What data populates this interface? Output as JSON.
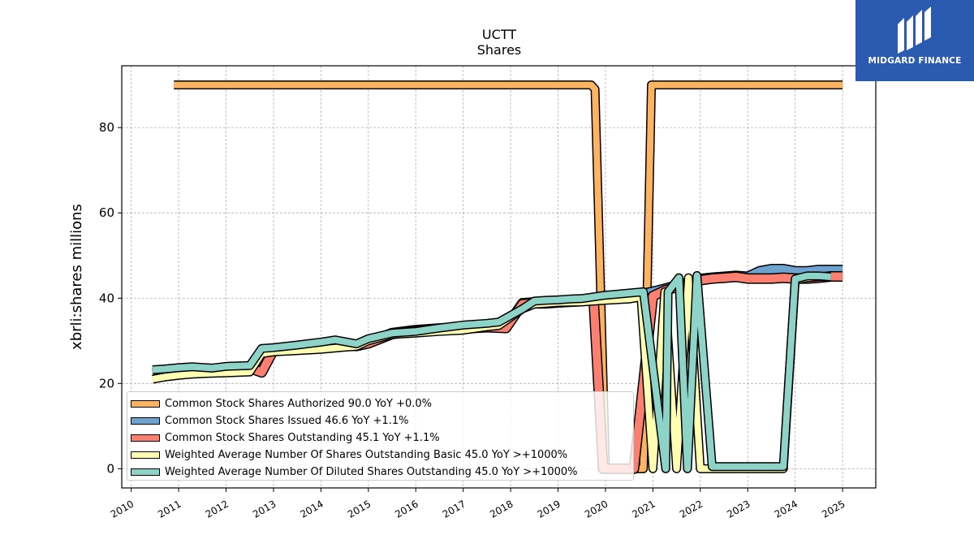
{
  "chart_data": {
    "type": "line",
    "title": "UCTT",
    "subtitle": "Shares",
    "ylabel": "xbrli:shares millions",
    "xlabel": "",
    "xlim": [
      2009.8,
      2025.7
    ],
    "ylim": [
      -4.5,
      94.5
    ],
    "yticks": [
      0,
      20,
      40,
      60,
      80
    ],
    "xticks": [
      "2010",
      "2011",
      "2012",
      "2013",
      "2014",
      "2015",
      "2016",
      "2017",
      "2018",
      "2019",
      "2020",
      "2021",
      "2022",
      "2023",
      "2024",
      "2025"
    ],
    "grid": true,
    "legend_position": "lower-left",
    "series": [
      {
        "name": "Common Stock Shares Authorized  90.0 YoY +0.0%",
        "color": "#fdb462",
        "x": [
          2010.9,
          2019.7,
          2019.78,
          2020.0,
          2020.6,
          2020.8,
          2020.97,
          2025.0
        ],
        "y": [
          90.0,
          90.0,
          89.0,
          0.0,
          0.0,
          0.0,
          90.0,
          90.0
        ]
      },
      {
        "name": "Common Stock Shares Issued  46.6 YoY +1.1%",
        "color": "#6fa3cf",
        "x": [
          2010.45,
          2010.7,
          2011.0,
          2011.3,
          2011.7,
          2012.0,
          2012.5,
          2012.75,
          2013.0,
          2013.5,
          2014.0,
          2014.5,
          2014.75,
          2015.0,
          2015.5,
          2016.0,
          2016.5,
          2017.0,
          2017.5,
          2017.9,
          2018.25,
          2018.5,
          2018.75,
          2019.0,
          2019.5,
          2019.75,
          2020.0,
          2020.5,
          2020.75,
          2021.0,
          2021.25,
          2021.5,
          2021.75,
          2022.0,
          2022.25,
          2022.5,
          2022.75,
          2023.0,
          2023.25,
          2023.5,
          2023.75,
          2024.0,
          2024.25,
          2024.5,
          2024.75,
          2025.0
        ],
        "y": [
          22.5,
          22.7,
          22.9,
          23.2,
          23.4,
          23.6,
          23.8,
          23.0,
          28.0,
          28.3,
          28.8,
          29.2,
          29.0,
          29.6,
          31.8,
          32.5,
          32.9,
          33.1,
          33.4,
          33.2,
          38.8,
          39.0,
          39.0,
          39.2,
          39.5,
          39.8,
          40.2,
          40.6,
          40.9,
          41.5,
          42.2,
          43.0,
          43.6,
          44.5,
          44.8,
          45.0,
          45.2,
          45.0,
          46.3,
          46.8,
          46.8,
          46.3,
          46.3,
          46.6,
          46.6,
          46.6
        ]
      },
      {
        "name": "Common Stock Shares Outstanding  45.1 YoY +1.1%",
        "color": "#fb8072",
        "x": [
          2010.45,
          2010.7,
          2011.0,
          2011.3,
          2011.7,
          2012.0,
          2012.5,
          2012.75,
          2013.0,
          2013.5,
          2014.0,
          2014.5,
          2014.75,
          2015.0,
          2015.5,
          2016.0,
          2016.5,
          2017.0,
          2017.5,
          2017.9,
          2018.25,
          2018.5,
          2018.75,
          2019.0,
          2019.5,
          2019.75,
          2019.95,
          2020.5,
          2020.6,
          2021.0,
          2021.25,
          2021.5,
          2021.75,
          2022.0,
          2022.25,
          2022.5,
          2022.75,
          2023.0,
          2023.25,
          2023.5,
          2023.75,
          2024.0,
          2024.25,
          2024.5,
          2024.75,
          2025.0
        ],
        "y": [
          22.3,
          22.5,
          22.7,
          23.0,
          23.2,
          23.4,
          23.6,
          22.6,
          27.8,
          28.0,
          28.5,
          29.0,
          28.8,
          29.4,
          31.6,
          32.3,
          32.7,
          32.9,
          33.2,
          33.0,
          38.6,
          38.8,
          38.8,
          39.0,
          39.3,
          39.6,
          0.0,
          0.0,
          0.0,
          40.5,
          41.8,
          42.6,
          43.3,
          44.2,
          44.6,
          44.8,
          45.0,
          44.6,
          44.6,
          44.6,
          44.8,
          44.6,
          44.6,
          44.8,
          45.1,
          45.1
        ]
      },
      {
        "name": "Weighted Average Number Of Shares Outstanding Basic  45.0 YoY >+1000%",
        "color": "#ffffb3",
        "x": [
          2010.45,
          2010.7,
          2011.0,
          2011.3,
          2011.7,
          2012.0,
          2012.5,
          2012.75,
          2013.0,
          2013.5,
          2014.0,
          2014.5,
          2014.75,
          2015.0,
          2015.5,
          2016.0,
          2016.5,
          2017.0,
          2017.5,
          2017.75,
          2018.25,
          2018.5,
          2018.75,
          2019.0,
          2019.5,
          2019.75,
          2020.0,
          2020.5,
          2020.75,
          2021.0,
          2021.25,
          2021.5,
          2021.75,
          2022.0,
          2022.25,
          2022.5,
          2022.75,
          2023.0,
          2023.25,
          2023.5,
          2023.75,
          2024.0,
          2024.25,
          2024.5,
          2024.75
        ],
        "y": [
          21.0,
          21.5,
          21.9,
          22.2,
          22.4,
          22.5,
          22.7,
          27.0,
          27.4,
          27.7,
          28.0,
          28.5,
          28.7,
          30.0,
          31.5,
          31.8,
          32.2,
          32.5,
          33.3,
          33.6,
          37.5,
          38.6,
          38.8,
          39.0,
          39.1,
          39.3,
          39.5,
          39.8,
          40.3,
          0.0,
          41.5,
          0.0,
          44.8,
          0.0,
          0.0,
          0.0,
          0.0,
          0.0,
          0.0,
          0.0,
          0.0,
          44.2,
          44.8,
          45.0,
          45.0
        ]
      },
      {
        "name": "Weighted Average Number Of Diluted Shares Outstanding  45.0 YoY >+1000%",
        "color": "#8dd3c7",
        "x": [
          2010.45,
          2010.7,
          2011.0,
          2011.3,
          2011.7,
          2012.0,
          2012.5,
          2012.75,
          2013.0,
          2013.5,
          2014.0,
          2014.3,
          2014.75,
          2015.0,
          2015.5,
          2016.0,
          2016.5,
          2017.0,
          2017.5,
          2017.75,
          2018.25,
          2018.5,
          2018.75,
          2019.0,
          2019.25,
          2019.5,
          2019.75,
          2020.0,
          2020.5,
          2020.8,
          2021.27,
          2021.32,
          2021.55,
          2021.73,
          2021.93,
          2022.25,
          2022.5,
          2022.75,
          2023.0,
          2023.25,
          2023.5,
          2023.75,
          2024.0,
          2024.25,
          2024.5,
          2024.75
        ],
        "y": [
          23.2,
          23.4,
          23.7,
          23.9,
          23.6,
          24.0,
          24.2,
          28.2,
          28.4,
          29.0,
          29.7,
          30.2,
          29.3,
          30.5,
          31.8,
          32.2,
          33.0,
          33.7,
          34.1,
          34.4,
          37.5,
          39.3,
          39.5,
          39.6,
          39.8,
          39.9,
          40.3,
          40.7,
          41.2,
          41.5,
          0.0,
          41.5,
          44.8,
          0.0,
          45.3,
          0.5,
          0.5,
          0.5,
          0.5,
          0.5,
          0.5,
          0.5,
          44.5,
          45.2,
          45.2,
          45.0
        ]
      }
    ]
  },
  "logo": {
    "text": "MIDGARD FINANCE",
    "color": "#2a5bb0"
  }
}
